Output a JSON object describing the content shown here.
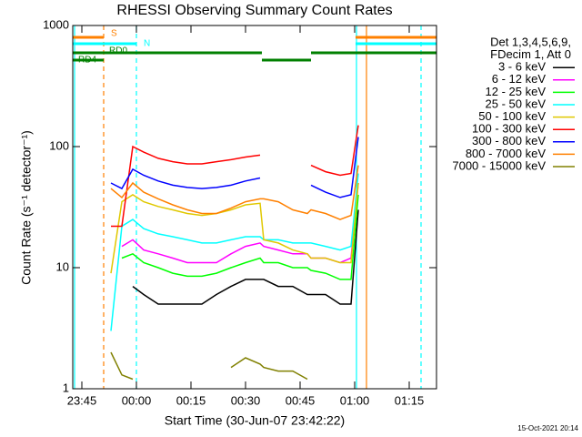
{
  "chart_data": {
    "type": "line",
    "title": "RHESSI Observing Summary Count Rates",
    "xlabel": "Start Time (30-Jun-07 23:42:22)",
    "ylabel": "Count Rate (s⁻¹ detector⁻¹)",
    "footnote": "15-Oct-2021 20:14",
    "legend_header": [
      "Det 1,3,4,5,6,9,",
      "FDecim 1, Att 0"
    ],
    "legend": "right",
    "log_y": true,
    "xlim": [
      -17.5,
      82.5
    ],
    "ylim": [
      1,
      1000
    ],
    "xticks": [
      {
        "value": -15,
        "label": "23:45"
      },
      {
        "value": 0,
        "label": "00:00"
      },
      {
        "value": 15,
        "label": "00:15"
      },
      {
        "value": 30,
        "label": "00:30"
      },
      {
        "value": 45,
        "label": "00:45"
      },
      {
        "value": 60,
        "label": "01:00"
      },
      {
        "value": 75,
        "label": "01:15"
      }
    ],
    "yticks": [
      1,
      10,
      100,
      1000
    ],
    "x": [
      -7,
      -4,
      -1,
      2,
      6,
      10,
      14,
      18,
      22,
      26,
      30,
      34,
      35,
      39,
      43,
      47,
      48,
      52,
      56,
      59,
      61
    ],
    "series": [
      {
        "name": "3 - 6 keV",
        "color": "#000000",
        "values": [
          null,
          null,
          7,
          6,
          5,
          5,
          5,
          5,
          6,
          7,
          8,
          8,
          8,
          7,
          7,
          6,
          6,
          6,
          5,
          5,
          30
        ]
      },
      {
        "name": "6 - 12 keV",
        "color": "#ff00ff",
        "values": [
          null,
          15,
          17,
          14,
          13,
          12,
          11,
          11,
          11,
          13,
          15,
          16,
          15,
          14,
          13,
          13,
          12,
          12,
          11,
          12,
          50
        ]
      },
      {
        "name": "12 - 25 keV",
        "color": "#00ff00",
        "values": [
          null,
          12,
          13,
          11,
          10,
          9,
          8.5,
          8.5,
          9,
          10,
          11,
          12,
          11,
          11,
          10,
          10,
          9.5,
          9,
          8,
          8,
          40
        ]
      },
      {
        "name": "25 - 50 keV",
        "color": "#00ffff",
        "values": [
          3,
          22,
          25,
          21,
          19,
          18,
          17,
          16,
          16,
          17,
          18,
          18,
          17,
          17,
          16,
          16,
          16,
          15,
          14,
          15,
          60
        ]
      },
      {
        "name": "50 - 100 keV",
        "color": "#e0c800",
        "values": [
          9,
          35,
          40,
          35,
          32,
          30,
          28,
          27,
          28,
          30,
          33,
          34,
          17,
          16,
          14,
          13,
          12,
          12,
          11,
          11,
          50
        ]
      },
      {
        "name": "100 - 300 keV",
        "color": "#ff0000",
        "values": [
          22,
          22,
          100,
          90,
          80,
          75,
          72,
          72,
          75,
          78,
          82,
          85,
          null,
          null,
          null,
          null,
          70,
          62,
          58,
          60,
          150
        ]
      },
      {
        "name": "300 - 800 keV",
        "color": "#0000ff",
        "values": [
          50,
          45,
          65,
          58,
          52,
          48,
          46,
          45,
          46,
          48,
          52,
          55,
          null,
          null,
          null,
          null,
          48,
          42,
          38,
          40,
          120
        ]
      },
      {
        "name": "800 - 7000 keV",
        "color": "#ff8000",
        "values": [
          45,
          38,
          50,
          42,
          37,
          33,
          30,
          28,
          28,
          31,
          35,
          37,
          37,
          35,
          30,
          28,
          30,
          28,
          25,
          27,
          70
        ]
      },
      {
        "name": "7000 - 15000 keV",
        "color": "#808000",
        "values": [
          2,
          1.3,
          1.2,
          null,
          null,
          null,
          null,
          null,
          null,
          1.5,
          1.8,
          1.6,
          1.5,
          1.4,
          1.4,
          1.2,
          null,
          null,
          null,
          null,
          null
        ]
      }
    ],
    "markers": [
      {
        "x": -17,
        "color": "#00ffff",
        "dashed": false
      },
      {
        "x": -9,
        "color": "#ff8000",
        "dashed": true
      },
      {
        "x": 0,
        "color": "#00ffff",
        "dashed": true
      },
      {
        "x": 60.5,
        "color": "#00ffff",
        "dashed": false
      },
      {
        "x": 63.25,
        "color": "#ff8000",
        "dashed": false
      },
      {
        "x": 78.25,
        "color": "#00ffff",
        "dashed": true
      }
    ],
    "flags": [
      {
        "label": "S",
        "color": "#ff8000",
        "segments": [
          [
            -17.5,
            -9
          ],
          [
            60.25,
            82.5
          ]
        ]
      },
      {
        "label": "N",
        "color": "#00ffff",
        "segments": [
          [
            -17.5,
            0
          ],
          [
            60.25,
            82.5
          ]
        ]
      },
      {
        "label": "RD0",
        "color": "#008000",
        "segments": [
          [
            -17.5,
            34.5
          ],
          [
            48,
            82.5
          ]
        ]
      },
      {
        "label": "RD4",
        "color": "#008000",
        "segments": [
          [
            -17.5,
            -9
          ],
          [
            34.5,
            48
          ]
        ]
      }
    ]
  }
}
